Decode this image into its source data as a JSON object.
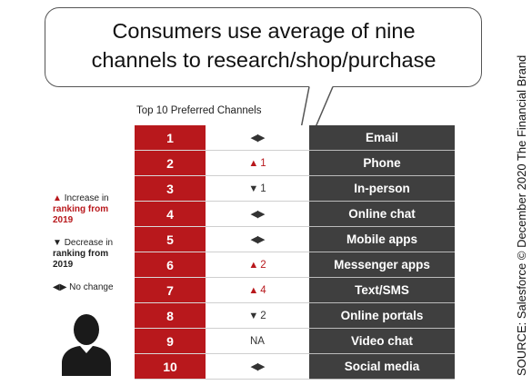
{
  "title_line1": "Consumers use average of nine",
  "title_line2": "channels to research/shop/purchase",
  "table_label": "Top 10 Preferred Channels",
  "legend": {
    "increase_line1": "Increase in",
    "increase_line2": "ranking from",
    "increase_line3": "2019",
    "decrease_line1": "Decrease in",
    "decrease_line2": "ranking from",
    "decrease_line3": "2019",
    "nochange": "No change"
  },
  "source": "SOURCE: Salesforce © December 2020 The Financial Brand",
  "colors": {
    "red": "#b8181c",
    "dark": "#3f3f3f"
  },
  "chart_data": {
    "type": "table",
    "title": "Top 10 Preferred Channels",
    "columns": [
      "rank",
      "change",
      "channel"
    ],
    "rows": [
      {
        "rank": "1",
        "direction": "same",
        "change": "",
        "channel": "Email"
      },
      {
        "rank": "2",
        "direction": "up",
        "change": "1",
        "channel": "Phone"
      },
      {
        "rank": "3",
        "direction": "down",
        "change": "1",
        "channel": "In-person"
      },
      {
        "rank": "4",
        "direction": "same",
        "change": "",
        "channel": "Online chat"
      },
      {
        "rank": "5",
        "direction": "same",
        "change": "",
        "channel": "Mobile apps"
      },
      {
        "rank": "6",
        "direction": "up",
        "change": "2",
        "channel": "Messenger apps"
      },
      {
        "rank": "7",
        "direction": "up",
        "change": "4",
        "channel": "Text/SMS"
      },
      {
        "rank": "8",
        "direction": "down",
        "change": "2",
        "channel": "Online portals"
      },
      {
        "rank": "9",
        "direction": "na",
        "change": "NA",
        "channel": "Video chat"
      },
      {
        "rank": "10",
        "direction": "same",
        "change": "",
        "channel": "Social media"
      }
    ]
  }
}
